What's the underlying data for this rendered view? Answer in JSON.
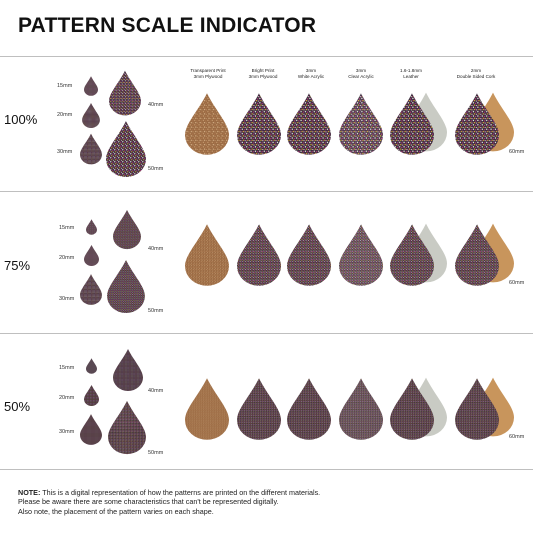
{
  "title": "PATTERN SCALE INDICATOR",
  "materials": [
    "Transparent Print\n3mm Plywood",
    "Bright Print\n3mm Plywood",
    "3mm\nWhite Acrylic",
    "3mm\nClear Acrylic",
    "1.6-1.8mm\nLeather",
    "2mm\nDouble Sided Cork"
  ],
  "rows": [
    {
      "scale": "100%"
    },
    {
      "scale": "75%"
    },
    {
      "scale": "50%"
    }
  ],
  "size_labels": {
    "s15": "15mm",
    "s20": "20mm",
    "s30": "30mm",
    "s40": "40mm",
    "s50": "50mm",
    "s60": "60mm"
  },
  "note": {
    "label": "NOTE:",
    "line1": " This is a digital representation of how the patterns are printed on the different materials.",
    "line2": "Please be aware there are some characteristics that can't be represented digitally.",
    "line3": "Also note, the placement of the pattern varies on each shape."
  },
  "colors": {
    "pattern_bg": "#3a2c3c",
    "plywood": "#9a6a43",
    "leather": "#c9cbc4",
    "cork": "#c8955c",
    "accent_pink": "#d63a8c",
    "accent_yellow": "#e6b53a"
  }
}
